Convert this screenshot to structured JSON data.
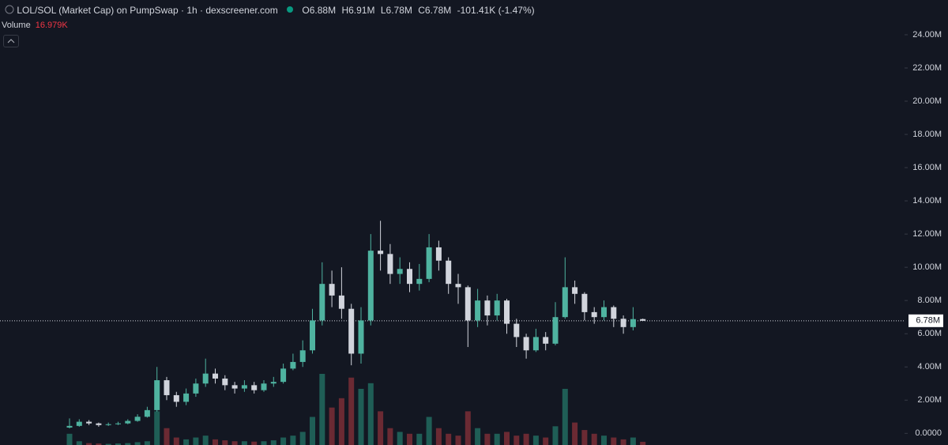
{
  "header": {
    "title": "LOL/SOL (Market Cap) on PumpSwap · 1h · dexscreener.com",
    "open_label": "O",
    "open": "6.88M",
    "high_label": "H",
    "high": "6.91M",
    "low_label": "L",
    "low": "6.78M",
    "close_label": "C",
    "close": "6.78M",
    "change": "-101.41K (-1.47%)",
    "volume_label": "Volume",
    "volume": "16.979K"
  },
  "chart_data": {
    "type": "candlestick",
    "up_color": "#4fb3a0",
    "down_color": "#d1d4dc",
    "volume_up_color": "#1f5e56",
    "volume_down_color": "#6b2a33",
    "open": [
      0.35,
      0.45,
      0.7,
      0.6,
      0.5,
      0.55,
      0.6,
      0.75,
      1.0,
      1.4,
      3.2,
      2.3,
      1.9,
      2.4,
      3.0,
      3.6,
      3.3,
      2.9,
      2.7,
      2.9,
      2.6,
      3.0,
      3.1,
      3.9,
      4.3,
      5.0,
      6.8,
      9.0,
      8.3,
      7.5,
      4.8,
      6.8,
      11.0,
      10.8,
      9.6,
      9.9,
      9.0,
      9.3,
      11.2,
      10.4,
      9.0,
      8.8,
      6.8,
      8.0,
      7.1,
      8.0,
      6.6,
      5.8,
      5.0,
      5.8,
      5.4,
      7.0,
      8.8,
      8.4,
      7.3,
      7.0,
      7.6,
      6.9,
      6.4,
      6.88
    ],
    "high": [
      0.9,
      0.85,
      0.8,
      0.65,
      0.65,
      0.7,
      0.85,
      1.15,
      1.6,
      4.0,
      3.4,
      2.5,
      2.7,
      3.3,
      4.5,
      3.9,
      3.5,
      3.1,
      3.2,
      3.1,
      3.2,
      3.4,
      4.2,
      4.8,
      5.6,
      7.5,
      10.3,
      9.8,
      10.0,
      7.8,
      7.6,
      12.0,
      12.8,
      11.4,
      10.6,
      10.3,
      10.2,
      12.0,
      11.6,
      10.6,
      9.6,
      8.9,
      8.7,
      8.3,
      8.4,
      8.1,
      6.9,
      6.0,
      6.3,
      6.1,
      7.9,
      10.6,
      9.2,
      8.5,
      7.6,
      8.0,
      7.7,
      7.1,
      7.6,
      6.91
    ],
    "low": [
      0.3,
      0.4,
      0.5,
      0.4,
      0.45,
      0.5,
      0.55,
      0.7,
      0.95,
      1.3,
      2.0,
      1.6,
      1.7,
      2.2,
      2.8,
      3.0,
      2.6,
      2.4,
      2.5,
      2.4,
      2.5,
      2.8,
      3.0,
      3.8,
      4.0,
      4.8,
      6.5,
      7.6,
      6.9,
      4.1,
      4.2,
      6.5,
      9.8,
      9.0,
      9.0,
      8.5,
      8.6,
      9.1,
      9.8,
      8.4,
      7.8,
      5.2,
      6.4,
      6.5,
      6.8,
      6.0,
      5.2,
      4.5,
      4.9,
      5.0,
      5.3,
      6.9,
      7.8,
      6.8,
      6.6,
      6.8,
      6.4,
      6.0,
      6.2,
      6.78
    ],
    "close": [
      0.45,
      0.7,
      0.6,
      0.5,
      0.55,
      0.6,
      0.75,
      1.0,
      1.4,
      3.2,
      2.3,
      1.9,
      2.4,
      3.0,
      3.6,
      3.3,
      2.9,
      2.7,
      2.9,
      2.6,
      3.0,
      3.1,
      3.9,
      4.3,
      5.0,
      6.8,
      9.0,
      8.3,
      7.5,
      4.8,
      6.8,
      11.0,
      10.8,
      9.6,
      9.9,
      9.0,
      9.3,
      11.2,
      10.4,
      9.0,
      8.8,
      6.8,
      8.0,
      7.1,
      8.0,
      6.6,
      5.8,
      5.0,
      5.8,
      5.4,
      7.0,
      8.8,
      8.4,
      7.3,
      7.0,
      7.6,
      6.9,
      6.4,
      6.88,
      6.78
    ],
    "volume": [
      60000,
      20000,
      10000,
      8000,
      6000,
      8000,
      10000,
      15000,
      20000,
      180000,
      90000,
      40000,
      30000,
      40000,
      50000,
      30000,
      25000,
      20000,
      20000,
      18000,
      20000,
      25000,
      40000,
      50000,
      70000,
      150000,
      380000,
      200000,
      250000,
      360000,
      300000,
      330000,
      180000,
      90000,
      70000,
      60000,
      60000,
      150000,
      90000,
      60000,
      50000,
      180000,
      90000,
      60000,
      60000,
      70000,
      50000,
      60000,
      50000,
      40000,
      100000,
      300000,
      120000,
      80000,
      60000,
      50000,
      40000,
      30000,
      40000,
      16979
    ],
    "ylim": [
      -0.7,
      24.76
    ],
    "yticks": [
      {
        "value": 0,
        "label": "0.0000"
      },
      {
        "value": 2,
        "label": "2.00M"
      },
      {
        "value": 4,
        "label": "4.00M"
      },
      {
        "value": 6,
        "label": "6.00M"
      },
      {
        "value": 8,
        "label": "8.00M"
      },
      {
        "value": 10,
        "label": "10.00M"
      },
      {
        "value": 12,
        "label": "12.00M"
      },
      {
        "value": 14,
        "label": "14.00M"
      },
      {
        "value": 16,
        "label": "16.00M"
      },
      {
        "value": 18,
        "label": "18.00M"
      },
      {
        "value": 20,
        "label": "20.00M"
      },
      {
        "value": 22,
        "label": "22.00M"
      },
      {
        "value": 24,
        "label": "24.00M"
      }
    ],
    "last_price": {
      "value": 6.78,
      "label": "6.78M"
    }
  }
}
